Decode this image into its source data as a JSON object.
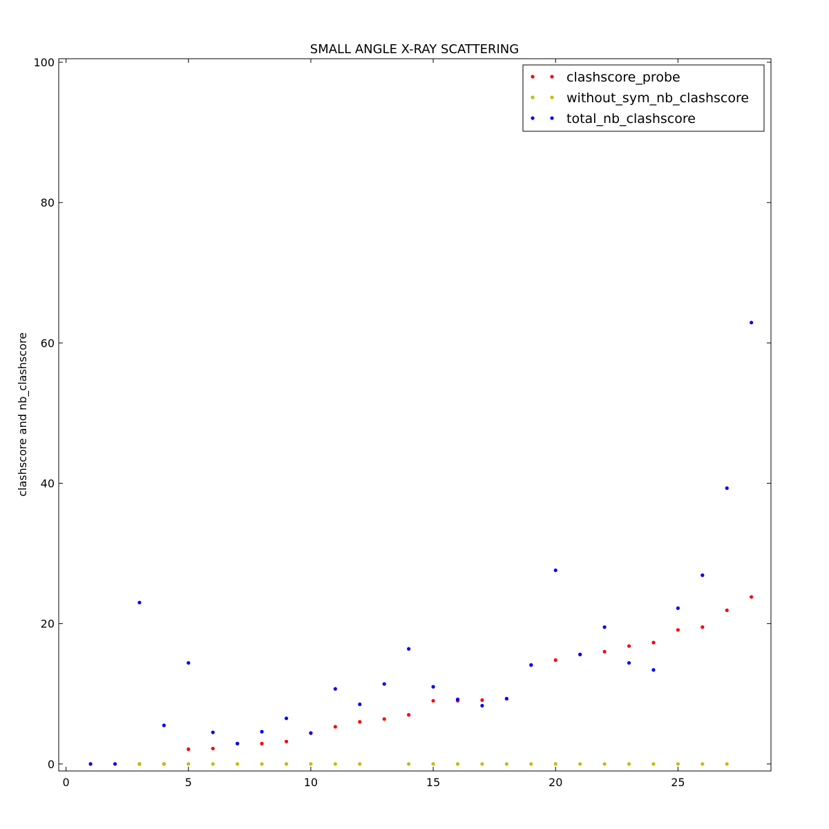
{
  "chart_data": {
    "type": "scatter",
    "title": "SMALL ANGLE X-RAY SCATTERING",
    "xlabel": "",
    "ylabel": "clashscore and nb_clashscore",
    "xlim": [
      -0.3,
      28.8
    ],
    "ylim": [
      -1,
      100.5
    ],
    "xticks": [
      0,
      5,
      10,
      15,
      20,
      25
    ],
    "yticks": [
      0,
      20,
      40,
      60,
      80,
      100
    ],
    "legend_position": "top-right",
    "grid": false,
    "x": [
      1,
      2,
      3,
      4,
      5,
      6,
      7,
      8,
      9,
      10,
      11,
      12,
      13,
      14,
      15,
      16,
      17,
      18,
      19,
      20,
      21,
      22,
      23,
      24,
      25,
      26,
      27,
      28
    ],
    "series": [
      {
        "name": "clashscore_probe",
        "color": "#ff0000",
        "values": [
          0,
          0,
          0,
          0,
          2.1,
          2.2,
          2.9,
          2.9,
          3.2,
          4.4,
          5.3,
          6.0,
          6.4,
          7.0,
          9.0,
          9.0,
          9.1,
          9.3,
          14.1,
          14.8,
          15.6,
          16.0,
          16.8,
          17.3,
          19.1,
          19.5,
          21.9,
          23.8
        ]
      },
      {
        "name": "without_sym_nb_clashscore",
        "color": "#bfbf00",
        "values": [
          0,
          0,
          0,
          0,
          0,
          0,
          0,
          0,
          0,
          0,
          0,
          0,
          null,
          0,
          0,
          0,
          0,
          0,
          0,
          0,
          0,
          0,
          0,
          0,
          0,
          0,
          0,
          null
        ]
      },
      {
        "name": "total_nb_clashscore",
        "color": "#0000ff",
        "values": [
          0,
          0,
          23.0,
          5.5,
          14.4,
          4.5,
          2.9,
          4.6,
          6.5,
          4.4,
          10.7,
          8.5,
          11.4,
          16.4,
          11.0,
          9.2,
          8.3,
          9.3,
          14.1,
          27.6,
          15.6,
          19.5,
          14.4,
          13.4,
          22.2,
          26.9,
          39.3,
          62.9
        ]
      }
    ]
  }
}
